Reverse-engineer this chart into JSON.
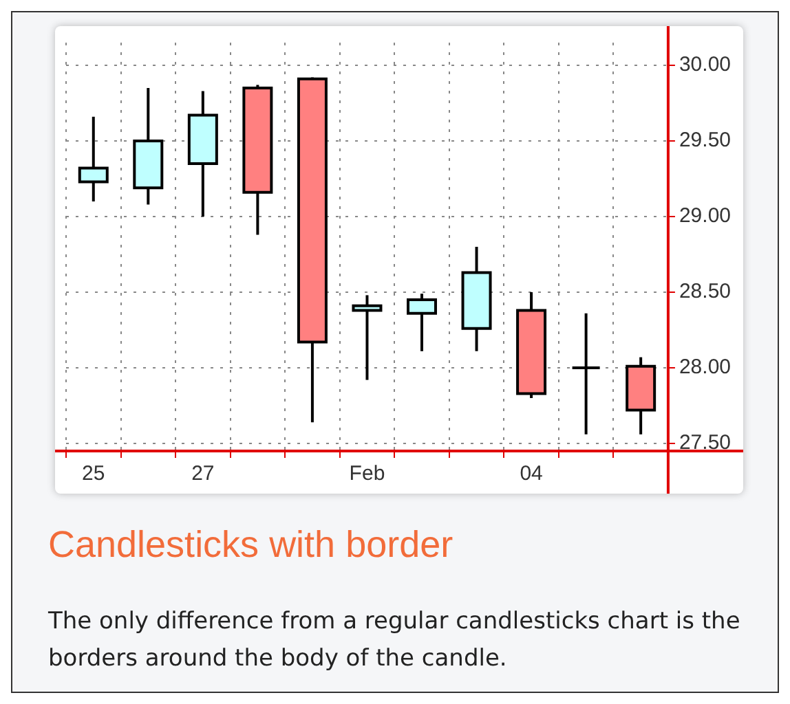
{
  "chart_data": {
    "type": "candlestick",
    "title": "Candlesticks with border",
    "annotations": [
      "The only difference from a regular candlesticks chart is the borders around the body of the candle."
    ],
    "categories": [
      "25",
      null,
      "27",
      null,
      null,
      "Feb",
      null,
      null,
      "04",
      null,
      null
    ],
    "ohlc": [
      [
        29.23,
        29.66,
        29.1,
        29.32
      ],
      [
        29.19,
        29.85,
        29.08,
        29.5
      ],
      [
        29.35,
        29.83,
        29.0,
        29.67
      ],
      [
        29.85,
        29.87,
        28.88,
        29.16
      ],
      [
        29.91,
        29.92,
        27.64,
        28.17
      ],
      [
        28.38,
        28.48,
        27.92,
        28.41
      ],
      [
        28.36,
        28.49,
        28.11,
        28.45
      ],
      [
        28.26,
        28.8,
        28.11,
        28.63
      ],
      [
        28.38,
        28.5,
        27.8,
        27.83
      ],
      [
        28.0,
        28.36,
        27.56,
        28.0
      ],
      [
        28.01,
        28.07,
        27.56,
        27.72
      ]
    ],
    "colors": [
      "#bfffff",
      "#bfffff",
      "#bfffff",
      "#ff8080",
      "#ff8080",
      "#bfffff",
      "#bfffff",
      "#bfffff",
      "#ff8080",
      "#000000",
      "#ff8080"
    ],
    "ylim": [
      27.45,
      30.15
    ],
    "yticks": [
      {
        "value": 27.5,
        "label": "27.50"
      },
      {
        "value": 28,
        "label": "28.00"
      },
      {
        "value": 28.5,
        "label": "28.50"
      },
      {
        "value": 29,
        "label": "29.00"
      },
      {
        "value": 29.5,
        "label": "29.50"
      },
      {
        "value": 30,
        "label": "30.00"
      }
    ],
    "grid": true,
    "legend": false
  }
}
